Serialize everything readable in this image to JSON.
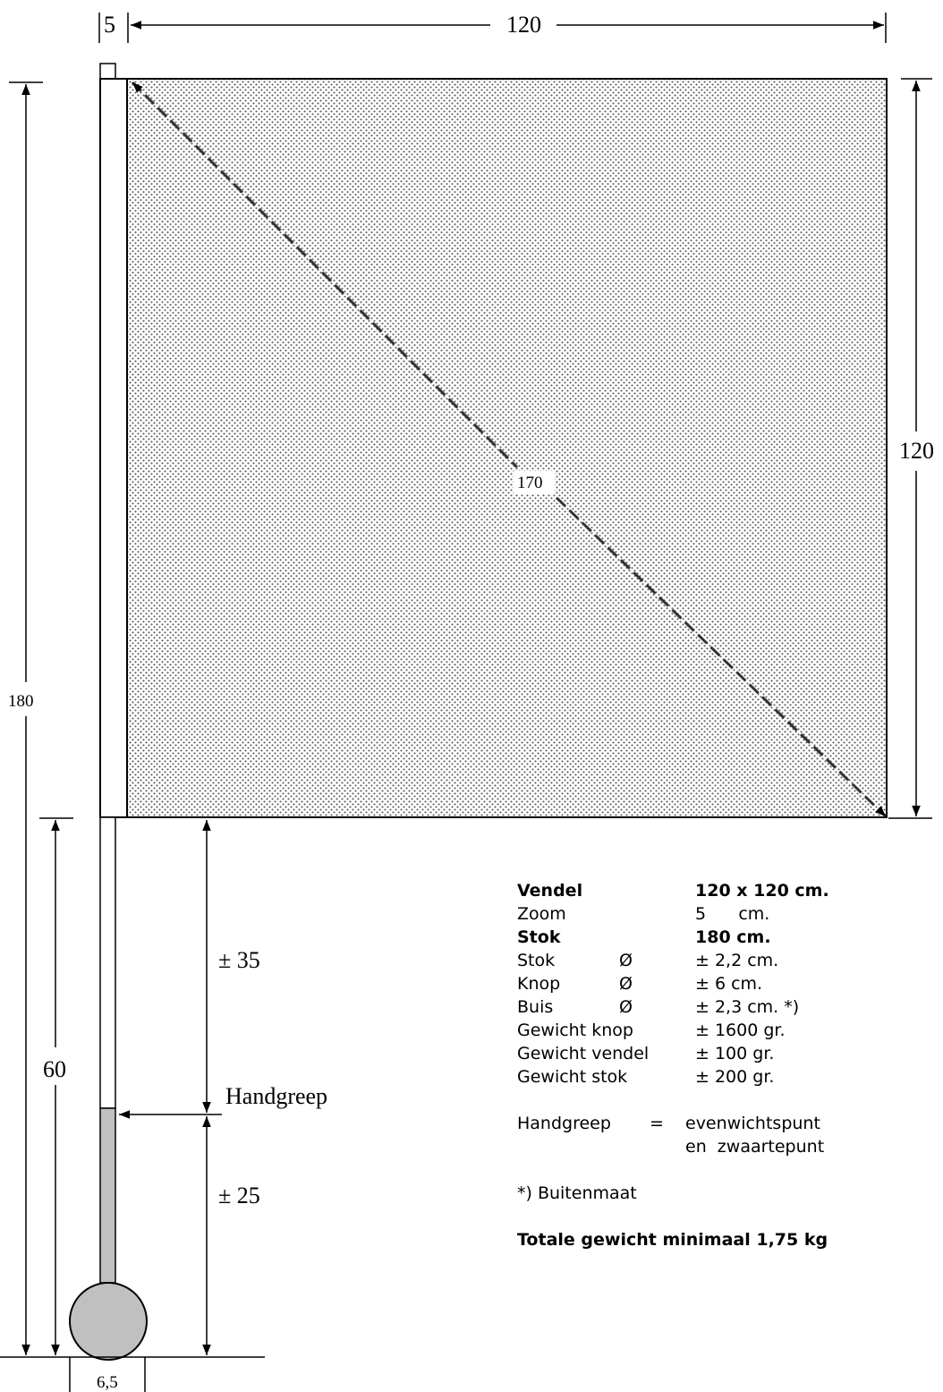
{
  "drawing": {
    "dim_zoom": "5",
    "dim_width": "120",
    "dim_height": "120",
    "dim_diagonal": "170",
    "dim_total": "180",
    "dim_lower": "60",
    "dim_upper_grip": "± 35",
    "dim_lower_grip": "± 25",
    "dim_knob": "6,5",
    "handgreep_label": "Handgreep"
  },
  "specs": {
    "vendel_label": "Vendel",
    "vendel_value": "120 x 120 cm.",
    "zoom_label": "Zoom",
    "zoom_value": "5      cm.",
    "stok_label": "Stok",
    "stok_value": "180 cm.",
    "stok_d_label": "Stok",
    "stok_d_symbol": "Ø",
    "stok_d_value": "± 2,2 cm.",
    "knop_label": "Knop",
    "knop_symbol": "Ø",
    "knop_value": "± 6 cm.",
    "buis_label": "Buis",
    "buis_symbol": "Ø",
    "buis_value": "± 2,3 cm. *)",
    "gew_knop_label": "Gewicht knop",
    "gew_knop_value": "± 1600 gr.",
    "gew_vendel_label": "Gewicht vendel",
    "gew_vendel_value": "± 100 gr.",
    "gew_stok_label": "Gewicht stok",
    "gew_stok_value": "± 200 gr.",
    "handgreep_label": "Handgreep",
    "handgreep_eq": "=",
    "handgreep_line1": "evenwichtspunt",
    "handgreep_line2": "en  zwaartepunt",
    "footnote": "*) Buitenmaat",
    "total": "Totale gewicht minimaal 1,75 kg"
  }
}
